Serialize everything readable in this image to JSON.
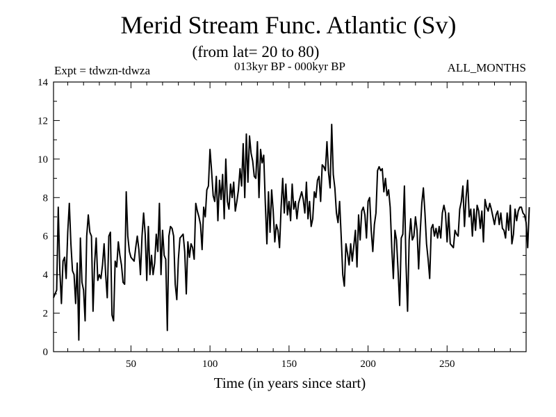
{
  "chart_data": {
    "type": "line",
    "title": "Merid Stream Func. Atlantic (Sv)",
    "subtitle": "(from lat= 20 to 80)",
    "left_label": "Expt = tdwzn-tdwza",
    "center_label": "013kyr BP - 000kyr BP",
    "right_label": "ALL_MONTHS",
    "xlabel": "Time (in years since start)",
    "ylabel": "",
    "xlim": [
      1,
      300
    ],
    "ylim": [
      0,
      14
    ],
    "xticks": [
      50,
      100,
      150,
      200,
      250
    ],
    "yticks": [
      0,
      2,
      4,
      6,
      8,
      10,
      12,
      14
    ],
    "grid": false,
    "series": [
      {
        "color": "#000000",
        "x_start": 1,
        "x_step": 1,
        "y": [
          2.8,
          3.0,
          3.2,
          7.5,
          4.2,
          2.5,
          4.7,
          4.9,
          3.8,
          6.2,
          7.7,
          5.6,
          4.2,
          4.0,
          2.5,
          4.6,
          0.6,
          5.9,
          3.6,
          3.2,
          1.6,
          6.0,
          7.1,
          6.2,
          6.0,
          2.1,
          4.6,
          5.9,
          3.7,
          4.0,
          3.8,
          4.5,
          5.6,
          4.0,
          2.8,
          6.0,
          6.2,
          1.9,
          1.6,
          4.7,
          4.4,
          5.7,
          5.0,
          4.5,
          3.6,
          3.5,
          8.3,
          6.0,
          5.2,
          4.9,
          4.8,
          4.7,
          5.4,
          6.0,
          5.3,
          4.0,
          6.0,
          7.2,
          6.1,
          3.7,
          6.5,
          4.0,
          5.0,
          4.0,
          4.6,
          6.1,
          5.2,
          7.7,
          4.0,
          6.3,
          5.0,
          4.8,
          1.1,
          6.0,
          6.5,
          6.4,
          6.0,
          3.5,
          2.7,
          4.8,
          5.9,
          6.0,
          6.1,
          5.2,
          3.0,
          5.7,
          4.9,
          5.6,
          5.4,
          4.8,
          7.7,
          7.3,
          7.0,
          6.6,
          5.3,
          7.5,
          7.0,
          8.4,
          8.6,
          10.5,
          9.4,
          8.1,
          7.8,
          9.1,
          6.8,
          8.9,
          7.9,
          9.2,
          6.9,
          10.0,
          7.8,
          7.4,
          8.7,
          8.0,
          8.8,
          7.3,
          7.8,
          8.4,
          9.5,
          8.6,
          10.8,
          8.0,
          11.3,
          8.8,
          11.2,
          10.3,
          9.9,
          9.1,
          9.0,
          10.9,
          8.0,
          10.5,
          9.8,
          10.2,
          7.7,
          5.6,
          8.3,
          6.2,
          8.4,
          7.3,
          5.7,
          6.6,
          6.3,
          5.4,
          7.5,
          9.0,
          7.2,
          8.7,
          7.1,
          7.8,
          6.8,
          8.7,
          7.4,
          7.8,
          6.9,
          7.7,
          8.0,
          8.3,
          7.9,
          7.2,
          8.8,
          6.9,
          7.8,
          6.5,
          6.9,
          8.3,
          8.0,
          8.9,
          9.1,
          7.8,
          9.7,
          9.6,
          9.4,
          10.9,
          9.3,
          8.5,
          11.8,
          9.2,
          8.5,
          7.2,
          6.7,
          7.8,
          6.0,
          4.0,
          3.4,
          5.6,
          5.1,
          4.5,
          5.6,
          4.7,
          5.5,
          6.3,
          4.4,
          7.1,
          5.8,
          7.3,
          7.5,
          7.1,
          5.9,
          7.8,
          8.0,
          6.3,
          5.2,
          6.6,
          7.2,
          9.4,
          9.6,
          9.4,
          9.5,
          8.3,
          9.0,
          8.1,
          8.4,
          7.5,
          5.4,
          3.8,
          6.3,
          5.8,
          4.2,
          2.4,
          5.9,
          6.1,
          8.6,
          4.6,
          2.1,
          5.8,
          6.9,
          5.8,
          6.0,
          7.0,
          6.3,
          4.3,
          6.2,
          7.7,
          8.5,
          7.2,
          5.6,
          4.8,
          3.8,
          6.4,
          6.6,
          6.0,
          6.4,
          5.9,
          6.5,
          5.9,
          7.2,
          7.6,
          7.2,
          5.7,
          7.2,
          5.6,
          5.5,
          5.4,
          6.3,
          6.1,
          6.0,
          7.4,
          7.8,
          8.6,
          6.5,
          8.0,
          8.9,
          7.0,
          7.4,
          6.0,
          7.4,
          6.3,
          7.6,
          7.3,
          6.4,
          7.3,
          5.7,
          7.9,
          7.5,
          7.3,
          7.7,
          7.4,
          7.0,
          6.6,
          7.1,
          7.3,
          6.6,
          7.2,
          6.4,
          6.3,
          5.9,
          7.2,
          6.3,
          7.6,
          5.6,
          6.1,
          7.4,
          6.8,
          7.3,
          7.5,
          7.5,
          7.2,
          7.1,
          6.7,
          5.4,
          7.5
        ]
      }
    ]
  }
}
